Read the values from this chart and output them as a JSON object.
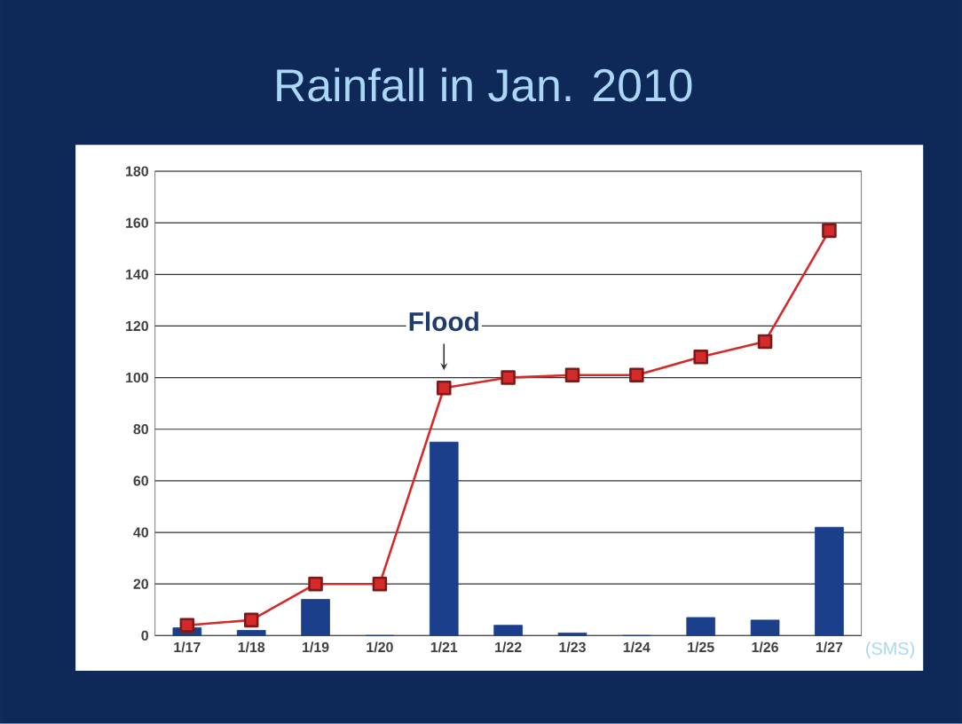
{
  "chart_data": {
    "type": "bar",
    "title": "Rainfall in Jan. 2010",
    "categories": [
      "1/17",
      "1/18",
      "1/19",
      "1/20",
      "1/21",
      "1/22",
      "1/23",
      "1/24",
      "1/25",
      "1/26",
      "1/27"
    ],
    "series": [
      {
        "color": "#1c3f8c",
        "values": [
          3,
          2,
          14,
          0,
          75,
          4,
          1,
          0,
          7,
          6,
          42
        ]
      },
      {
        "type": "line",
        "color": "#d42a2a",
        "marker": "square",
        "line_style": "solid",
        "values": [
          4,
          6,
          20,
          20,
          96,
          100,
          101,
          101,
          108,
          114,
          157
        ]
      }
    ],
    "ylim": [
      0,
      180
    ],
    "yticks": [
      0,
      20,
      40,
      60,
      80,
      100,
      120,
      140,
      160,
      180
    ],
    "grid": "y",
    "annotations": [
      {
        "text": "Flood",
        "x": "1/21",
        "y": 96
      },
      "(SMS)"
    ]
  }
}
